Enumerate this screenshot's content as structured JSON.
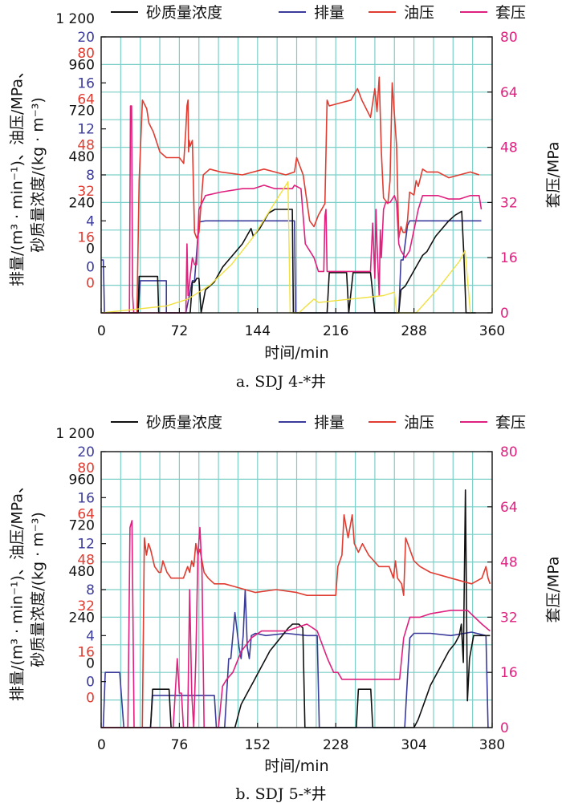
{
  "colors": {
    "sand": "#111111",
    "rate": "#3b3b9c",
    "oil": "#e03c31",
    "casing": "#e0207e",
    "yellow": "#f0e040",
    "grid": "#7ccfc7",
    "axis": "#111111"
  },
  "chart_data": [
    {
      "type": "line",
      "caption": "a. SDJ 4-*井",
      "xlabel": "时间/min",
      "ylabel_lines": [
        "排量/(m³ · min⁻¹)、油压/MPa、",
        "砂质量浓度/(kg · m⁻³)"
      ],
      "y2label": "套压/MPa",
      "xlim": [
        0,
        360
      ],
      "xticks": [
        "0",
        "72",
        "144",
        "216",
        "288",
        "360"
      ],
      "ylim_sand": [
        -240,
        1200
      ],
      "yticks_sand": [
        "0",
        "240",
        "480",
        "720",
        "960",
        "1 200"
      ],
      "ylim_rate": [
        -4,
        20
      ],
      "yticks_rate": [
        "0",
        "4",
        "8",
        "12",
        "16",
        "20"
      ],
      "ylim_oil": [
        -16,
        80
      ],
      "yticks_oil": [
        "0",
        "16",
        "32",
        "48",
        "64",
        "80"
      ],
      "ylim_casing": [
        0,
        80
      ],
      "yticks_casing": [
        "0",
        "16",
        "32",
        "48",
        "64",
        "80"
      ],
      "legend": [
        "砂质量浓度",
        "排量",
        "油压",
        "套压"
      ],
      "series": [
        {
          "name": "排量",
          "x": [
            0,
            2,
            3,
            4,
            34,
            36,
            60,
            60,
            78,
            84,
            86,
            90,
            96,
            170,
            178,
            179,
            184,
            186,
            274,
            276,
            278,
            282,
            284,
            350
          ],
          "y": [
            0.6,
            0.6,
            -4,
            -4,
            -4,
            -1.2,
            -1.2,
            -4,
            -4,
            -1.2,
            -1.2,
            3.9,
            4.0,
            4.0,
            4.0,
            -4,
            -4,
            -4,
            -4,
            0.6,
            0.6,
            3.6,
            4.0,
            4.0
          ]
        },
        {
          "name": "砂质量浓度",
          "x": [
            0,
            34,
            35,
            37,
            52,
            53,
            82,
            84,
            86,
            88,
            90,
            92,
            96,
            100,
            104,
            108,
            112,
            118,
            124,
            130,
            134,
            138,
            140,
            146,
            150,
            154,
            160,
            166,
            172,
            176,
            177,
            178,
            190,
            192,
            206,
            208,
            210,
            222,
            226,
            228,
            232,
            248,
            252,
            254,
            270,
            274,
            276,
            280,
            284,
            288,
            292,
            296,
            300,
            304,
            308,
            314,
            320,
            326,
            332,
            334,
            336,
            345
          ],
          "y": [
            -240,
            -240,
            -50,
            -50,
            -50,
            -240,
            -240,
            -80,
            -80,
            -60,
            -60,
            -240,
            -120,
            -100,
            -80,
            -40,
            0,
            40,
            80,
            120,
            160,
            200,
            160,
            200,
            240,
            280,
            300,
            300,
            300,
            300,
            -240,
            -240,
            -240,
            -240,
            -240,
            -240,
            -30,
            -30,
            -30,
            -240,
            -30,
            -30,
            -240,
            -240,
            -240,
            -240,
            -120,
            -100,
            -60,
            -20,
            20,
            60,
            80,
            120,
            160,
            200,
            240,
            270,
            290,
            60,
            -240,
            -240
          ]
        },
        {
          "name": "油压",
          "x": [
            0,
            30,
            33,
            35,
            38,
            42,
            44,
            48,
            54,
            60,
            66,
            72,
            76,
            78,
            79,
            80,
            80.5,
            81,
            82,
            84,
            86,
            88,
            90,
            94,
            100,
            110,
            130,
            150,
            160,
            170,
            178,
            180,
            186,
            192,
            196,
            200,
            206,
            208,
            210,
            220,
            230,
            236,
            240,
            248,
            252,
            254,
            256,
            258,
            260,
            264,
            266,
            268,
            272,
            274,
            276,
            278,
            280,
            282,
            284,
            288,
            290,
            292,
            296,
            300,
            310,
            320,
            330,
            340,
            348
          ],
          "y": [
            -16,
            -16,
            -16,
            30,
            58,
            55,
            50,
            47,
            40,
            38,
            38,
            38,
            36,
            48,
            56,
            58,
            40,
            44,
            42,
            44,
            12,
            10,
            12,
            32,
            34,
            33,
            32,
            34,
            33,
            32,
            33,
            38,
            32,
            16,
            14,
            18,
            22,
            58,
            56,
            57,
            58,
            62,
            58,
            52,
            62,
            54,
            66,
            40,
            24,
            22,
            30,
            64,
            42,
            10,
            14,
            12,
            12,
            16,
            26,
            25,
            30,
            28,
            34,
            33,
            33,
            31,
            32,
            33,
            32
          ]
        },
        {
          "name": "套压",
          "x": [
            0,
            24,
            26,
            27,
            28,
            29,
            30,
            31,
            32,
            33,
            34,
            78,
            79,
            80,
            84,
            86,
            88,
            90,
            96,
            110,
            130,
            140,
            150,
            160,
            170,
            176,
            178,
            184,
            188,
            192,
            196,
            200,
            202,
            205,
            206,
            207,
            208,
            210,
            220,
            230,
            240,
            248,
            250,
            252,
            253,
            254,
            256,
            257,
            258,
            260,
            262,
            266,
            270,
            272,
            274,
            276,
            280,
            284,
            288,
            292,
            296,
            300,
            310,
            320,
            330,
            340,
            346,
            348,
            350
          ],
          "y": [
            0,
            0,
            0,
            60,
            60,
            5,
            0,
            0,
            0,
            0,
            0,
            0,
            20,
            5,
            16,
            14,
            14,
            30,
            34,
            35,
            36,
            36,
            37,
            36,
            36,
            36,
            37,
            36,
            20,
            18,
            16,
            12,
            12,
            12,
            28,
            30,
            12,
            12,
            12,
            12,
            12,
            12,
            26,
            10,
            30,
            20,
            5,
            24,
            16,
            30,
            32,
            32,
            34,
            32,
            20,
            18,
            16,
            18,
            24,
            30,
            34,
            34,
            34,
            33,
            33,
            34,
            34,
            34,
            30
          ]
        },
        {
          "name": "",
          "x": [
            0,
            60,
            80,
            100,
            120,
            140,
            160,
            170,
            172,
            174,
            176,
            182,
            196,
            200,
            230,
            260,
            270,
            272,
            290,
            310,
            330,
            335,
            340
          ],
          "y": [
            0,
            2,
            4,
            8,
            14,
            22,
            32,
            37,
            38,
            0,
            0,
            0,
            4,
            3,
            4,
            5,
            6,
            0,
            0,
            7,
            15,
            18,
            0
          ]
        }
      ]
    },
    {
      "type": "line",
      "caption": "b. SDJ 5-*井",
      "xlabel": "时间/min",
      "ylabel_lines": [
        "排量/(m³ · min⁻¹)、油压/MPa、",
        "砂质量浓度/(kg · m⁻³)"
      ],
      "y2label": "套压/MPa",
      "xlim": [
        0,
        380
      ],
      "xticks": [
        "0",
        "76",
        "152",
        "228",
        "304",
        "380"
      ],
      "ylim_sand": [
        -240,
        1200
      ],
      "yticks_sand": [
        "0",
        "240",
        "480",
        "720",
        "960",
        "1 200"
      ],
      "ylim_rate": [
        -4,
        20
      ],
      "yticks_rate": [
        "0",
        "4",
        "8",
        "12",
        "16",
        "20"
      ],
      "ylim_oil": [
        -16,
        80
      ],
      "yticks_oil": [
        "0",
        "16",
        "32",
        "48",
        "64",
        "80"
      ],
      "ylim_casing": [
        0,
        80
      ],
      "yticks_casing": [
        "0",
        "16",
        "32",
        "48",
        "64",
        "80"
      ],
      "legend": [
        "砂质量浓度",
        "排量",
        "油压",
        "套压"
      ],
      "series": [
        {
          "name": "排量",
          "x": [
            0,
            2,
            4,
            6,
            10,
            14,
            18,
            22,
            48,
            50,
            100,
            110,
            112,
            120,
            124,
            126,
            130,
            134,
            136,
            138,
            140,
            142,
            144,
            146,
            150,
            160,
            180,
            200,
            210,
            212,
            295,
            298,
            300,
            304,
            320,
            340,
            360,
            374,
            376
          ],
          "y": [
            -4,
            -4,
            0.8,
            0.8,
            0.8,
            0.8,
            0.8,
            -4,
            -4,
            -1.2,
            -1.2,
            -1.2,
            -4,
            -4,
            2,
            2,
            6,
            3,
            2,
            4,
            8,
            3,
            2,
            4,
            4.2,
            4.0,
            4.2,
            4.0,
            4.0,
            -4,
            -4,
            0.8,
            3.8,
            4.2,
            4.2,
            4.0,
            4.3,
            4.0,
            -4
          ]
        },
        {
          "name": "砂质量浓度",
          "x": [
            0,
            48,
            50,
            54,
            66,
            68,
            130,
            132,
            134,
            136,
            140,
            144,
            148,
            152,
            156,
            160,
            164,
            170,
            176,
            182,
            186,
            192,
            196,
            198,
            200,
            248,
            250,
            262,
            264,
            304,
            308,
            312,
            316,
            320,
            326,
            332,
            338,
            344,
            348,
            350,
            352,
            354,
            356,
            358,
            362,
            370,
            378
          ],
          "y": [
            -240,
            -240,
            -40,
            -40,
            -40,
            -240,
            -240,
            -200,
            -160,
            -120,
            -80,
            -40,
            0,
            40,
            80,
            120,
            160,
            200,
            240,
            280,
            300,
            300,
            280,
            -240,
            -240,
            -240,
            -40,
            -40,
            -240,
            -240,
            -200,
            -140,
            -80,
            -20,
            40,
            100,
            160,
            200,
            240,
            300,
            100,
            1000,
            -100,
            120,
            240,
            240,
            240
          ]
        },
        {
          "name": "油压",
          "x": [
            0,
            40,
            42,
            44,
            46,
            48,
            52,
            56,
            58,
            60,
            64,
            68,
            72,
            80,
            84,
            86,
            88,
            90,
            92,
            94,
            96,
            100,
            104,
            110,
            120,
            130,
            150,
            170,
            190,
            200,
            210,
            220,
            226,
            228,
            230,
            234,
            236,
            238,
            240,
            244,
            246,
            250,
            254,
            260,
            270,
            280,
            284,
            286,
            288,
            292,
            294,
            296,
            300,
            304,
            310,
            320,
            340,
            360,
            370,
            374,
            376,
            378
          ],
          "y": [
            -16,
            -16,
            50,
            44,
            48,
            46,
            40,
            38,
            38,
            42,
            38,
            36,
            36,
            36,
            40,
            38,
            42,
            40,
            48,
            44,
            46,
            38,
            36,
            34,
            34,
            33,
            31,
            32,
            31,
            30,
            30,
            30,
            30,
            30,
            40,
            44,
            58,
            54,
            50,
            58,
            48,
            45,
            48,
            44,
            40,
            40,
            36,
            42,
            36,
            34,
            30,
            50,
            46,
            42,
            40,
            38,
            36,
            34,
            36,
            40,
            36,
            34
          ]
        },
        {
          "name": "套压",
          "x": [
            0,
            26,
            28,
            30,
            32,
            34,
            40,
            70,
            74,
            76,
            78,
            80,
            84,
            86,
            88,
            90,
            92,
            94,
            96,
            98,
            100,
            110,
            114,
            118,
            122,
            128,
            136,
            146,
            156,
            170,
            180,
            200,
            210,
            220,
            226,
            228,
            230,
            234,
            236,
            238,
            244,
            246,
            250,
            256,
            260,
            266,
            270,
            278,
            280,
            284,
            286,
            290,
            294,
            300,
            310,
            320,
            340,
            350,
            356,
            370,
            378
          ],
          "y": [
            0,
            0,
            58,
            60,
            0,
            0,
            0,
            0,
            20,
            10,
            10,
            0,
            0,
            40,
            10,
            0,
            20,
            50,
            58,
            45,
            0,
            0,
            0,
            12,
            14,
            16,
            22,
            26,
            28,
            28,
            28,
            30,
            28,
            20,
            16,
            16,
            16,
            14,
            14,
            14,
            14,
            14,
            14,
            14,
            14,
            14,
            14,
            14,
            14,
            14,
            14,
            14,
            26,
            32,
            32,
            33,
            34,
            34,
            34,
            30,
            28
          ]
        }
      ]
    }
  ]
}
